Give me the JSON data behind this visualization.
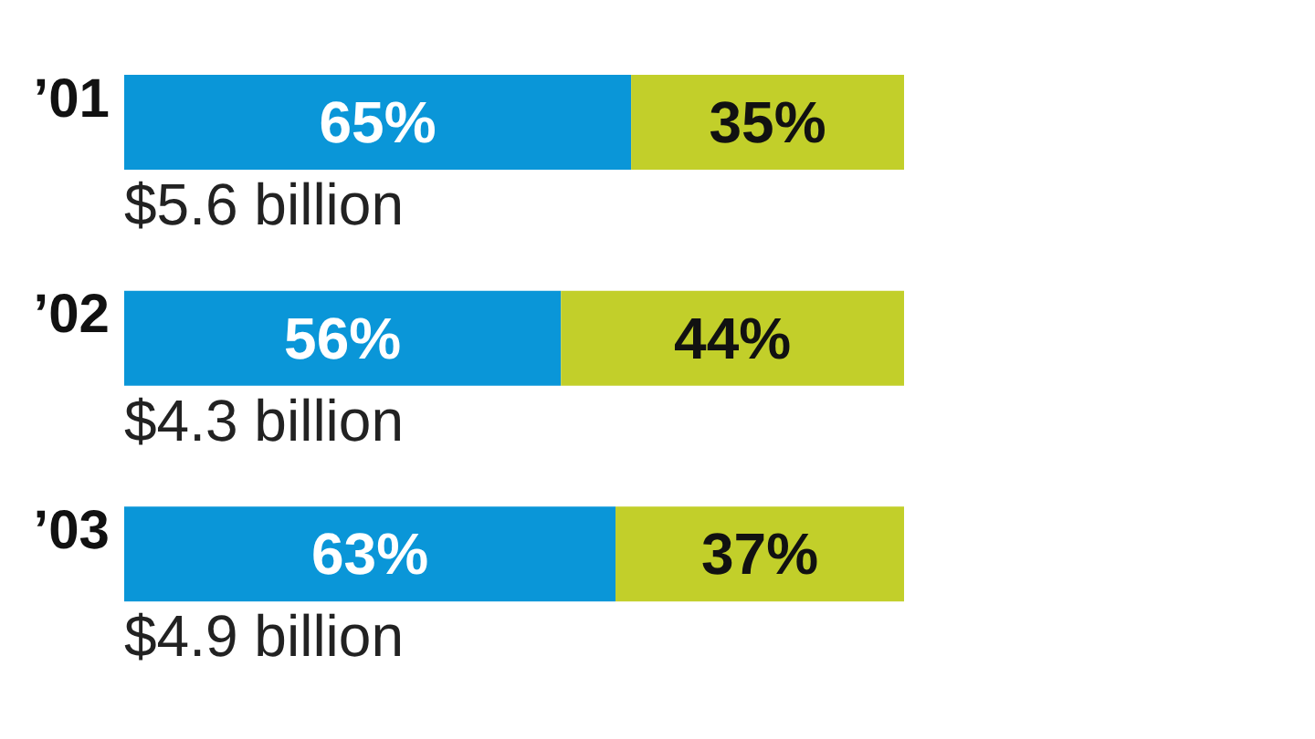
{
  "chart_data": {
    "type": "bar",
    "orientation": "horizontal",
    "stacked": true,
    "categories": [
      "’01",
      "’02",
      "’03"
    ],
    "series": [
      {
        "color": "#0a96d8",
        "values": [
          65,
          56,
          63
        ],
        "value_labels": [
          "65%",
          "56%",
          "63%"
        ]
      },
      {
        "color": "#c2cf2a",
        "values": [
          35,
          44,
          37
        ],
        "value_labels": [
          "35%",
          "44%",
          "37%"
        ]
      }
    ],
    "xlim": [
      0,
      100
    ],
    "tick_labels": "y",
    "annotations": [
      "$5.6 billion",
      "$4.3 billion",
      "$4.9 billion"
    ],
    "grid": false,
    "legend": false
  }
}
